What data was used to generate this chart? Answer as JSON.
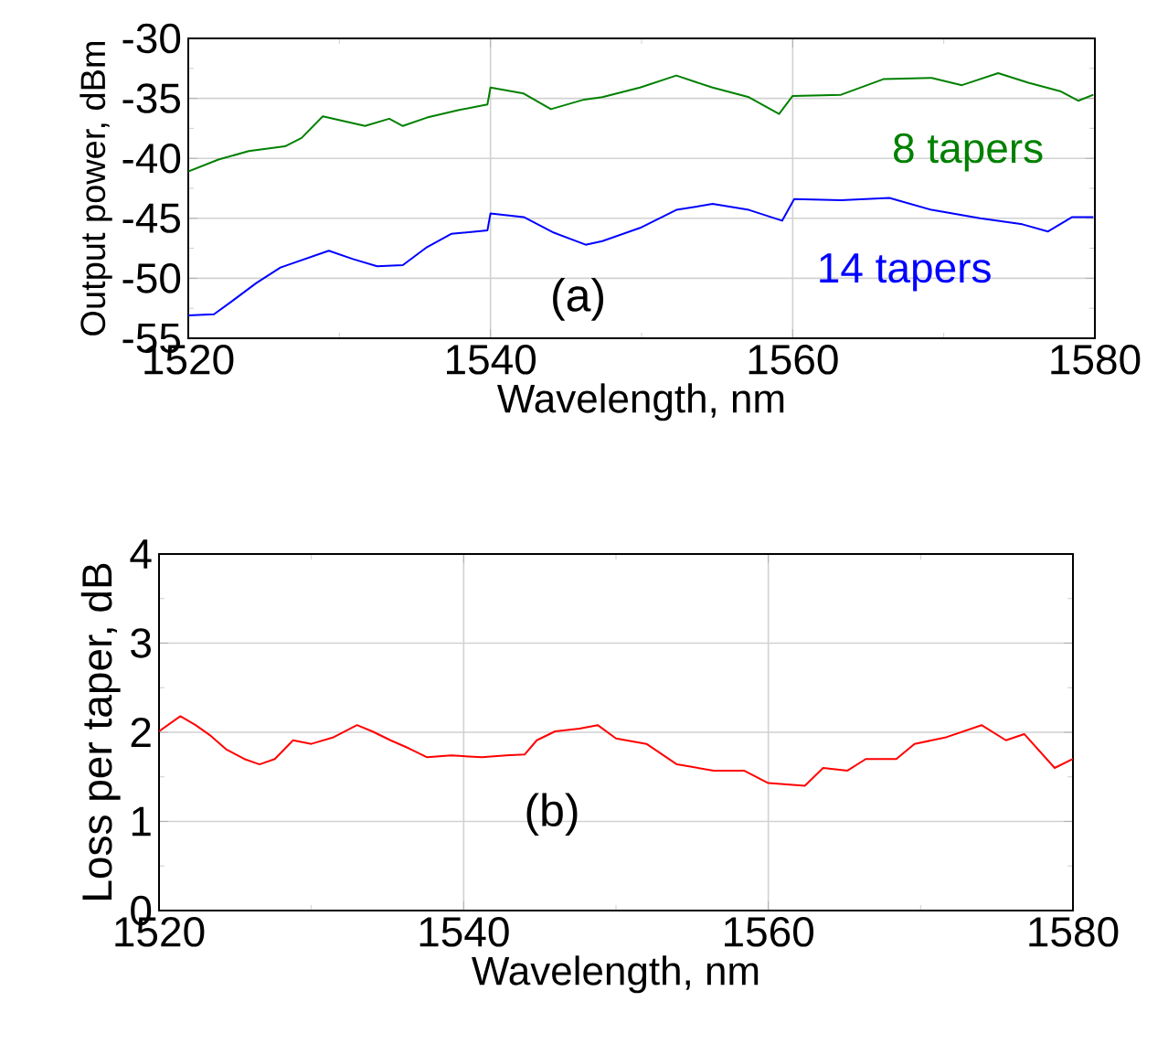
{
  "chart_data": [
    {
      "type": "line",
      "xlabel": "Wavelength, nm",
      "ylabel": "Output power, dBm",
      "xlim": [
        1520,
        1580
      ],
      "ylim": [
        -55,
        -30
      ],
      "xticks": [
        1520,
        1540,
        1560,
        1580
      ],
      "yticks": [
        -55,
        -50,
        -45,
        -40,
        -35,
        -30
      ],
      "grid": true,
      "annotations": [
        "(a)"
      ],
      "series": [
        {
          "name": "8 tapers",
          "color": "#008000",
          "x": [
            1520,
            1522,
            1524,
            1526.4,
            1527.5,
            1528.9,
            1531.7,
            1533.3,
            1534.2,
            1535.8,
            1537.8,
            1539.8,
            1540.0,
            1542.2,
            1544.0,
            1546.2,
            1547.4,
            1549.9,
            1552.3,
            1554.7,
            1557.1,
            1559.1,
            1560.0,
            1563.2,
            1566.0,
            1569.2,
            1571.2,
            1573.6,
            1575.6,
            1577.7,
            1578.9,
            1579.9
          ],
          "values": [
            -41.1,
            -40.1,
            -39.4,
            -39.0,
            -38.3,
            -36.5,
            -37.3,
            -36.7,
            -37.3,
            -36.6,
            -36.0,
            -35.5,
            -34.1,
            -34.6,
            -35.9,
            -35.1,
            -34.9,
            -34.1,
            -33.1,
            -34.1,
            -34.9,
            -36.3,
            -34.8,
            -34.7,
            -33.4,
            -33.3,
            -33.9,
            -32.9,
            -33.7,
            -34.4,
            -35.2,
            -34.7
          ]
        },
        {
          "name": "14 tapers",
          "color": "#0000ff",
          "x": [
            1520,
            1521.7,
            1522.9,
            1524.5,
            1526.1,
            1527.7,
            1529.3,
            1530.9,
            1532.5,
            1534.2,
            1535.8,
            1537.4,
            1539.8,
            1540.0,
            1542.2,
            1544.2,
            1546.3,
            1547.4,
            1549.9,
            1552.3,
            1554.7,
            1557.1,
            1559.3,
            1560.1,
            1563.2,
            1566.4,
            1569.2,
            1572.4,
            1575.2,
            1576.9,
            1578.5,
            1579.9
          ],
          "values": [
            -53.1,
            -53.0,
            -51.9,
            -50.4,
            -49.1,
            -48.4,
            -47.7,
            -48.4,
            -49.0,
            -48.9,
            -47.4,
            -46.3,
            -46.0,
            -44.6,
            -44.9,
            -46.2,
            -47.2,
            -46.9,
            -45.8,
            -44.3,
            -43.8,
            -44.3,
            -45.2,
            -43.4,
            -43.5,
            -43.3,
            -44.3,
            -45.0,
            -45.5,
            -46.1,
            -44.9,
            -44.9
          ]
        }
      ]
    },
    {
      "type": "line",
      "xlabel": "Wavelength, nm",
      "ylabel": "Loss per taper, dB",
      "xlim": [
        1520,
        1580
      ],
      "ylim": [
        0,
        4
      ],
      "xticks": [
        1520,
        1540,
        1560,
        1580
      ],
      "yticks": [
        0,
        1,
        2,
        3,
        4
      ],
      "grid": true,
      "annotations": [
        "(b)"
      ],
      "series": [
        {
          "color": "#ff0000",
          "x": [
            1520,
            1521.4,
            1522.4,
            1523.4,
            1524.4,
            1525.6,
            1526.6,
            1527.6,
            1528.8,
            1530,
            1531.4,
            1533,
            1534,
            1535.2,
            1536.4,
            1537.6,
            1539.2,
            1541.2,
            1542.8,
            1544,
            1544.8,
            1546,
            1547.6,
            1548.8,
            1550.0,
            1552.0,
            1554.0,
            1556.4,
            1558.4,
            1560,
            1562.4,
            1563.6,
            1565.2,
            1566.4,
            1568.4,
            1569.6,
            1571.6,
            1574.0,
            1575.6,
            1576.8,
            1578.8,
            1580
          ],
          "values": [
            2.01,
            2.18,
            2.08,
            1.96,
            1.81,
            1.7,
            1.64,
            1.7,
            1.91,
            1.87,
            1.94,
            2.08,
            2.01,
            1.91,
            1.82,
            1.72,
            1.74,
            1.72,
            1.74,
            1.75,
            1.91,
            2.01,
            2.04,
            2.08,
            1.93,
            1.87,
            1.64,
            1.57,
            1.57,
            1.43,
            1.4,
            1.6,
            1.57,
            1.7,
            1.7,
            1.87,
            1.94,
            2.08,
            1.91,
            1.98,
            1.6,
            1.7
          ]
        }
      ]
    }
  ]
}
